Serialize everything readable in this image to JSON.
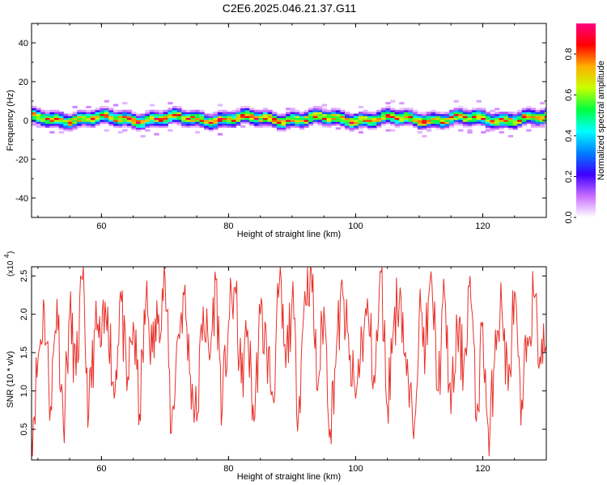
{
  "title": "C2E6.2025.046.21.37.G11",
  "colors": {
    "snr_line": "#e8312a",
    "colormap": [
      "#ffffff",
      "#c86bff",
      "#3b00ff",
      "#0080ff",
      "#00ffff",
      "#00ff40",
      "#c8ff00",
      "#ffb000",
      "#ff0000",
      "#ff0080"
    ]
  },
  "chart_data": [
    {
      "type": "heatmap",
      "xlabel": "Height of straight line (km)",
      "ylabel": "Frequency (Hz)",
      "xlim": [
        49,
        130
      ],
      "ylim": [
        -50,
        50
      ],
      "x_ticks": [
        60,
        80,
        100,
        120
      ],
      "y_ticks": [
        -40,
        -20,
        0,
        20,
        40
      ],
      "y_tick_labels": [
        "-40",
        "-20",
        "0",
        "20",
        "40"
      ],
      "center_frequency_hz": 1.0,
      "band_halfwidth_hz": 3,
      "colorbar": {
        "label": "Normalized spectral amplitude",
        "range": [
          0.0,
          0.95
        ],
        "ticks": [
          0.0,
          0.2,
          0.4,
          0.6,
          0.8
        ],
        "tick_labels": [
          "0.0",
          "0.2",
          "0.4",
          "0.6",
          "0.8"
        ]
      },
      "grid": false
    },
    {
      "type": "line",
      "xlabel": "Height of straight line (km)",
      "ylabel": "SNR (10 * v/v)",
      "y_exponent_label": "(x10",
      "y_exponent": "4",
      "xlim": [
        49,
        130
      ],
      "ylim": [
        0.1,
        2.62
      ],
      "x_ticks": [
        60,
        80,
        100,
        120
      ],
      "y_ticks": [
        0.5,
        1.0,
        1.5,
        2.0,
        2.5
      ],
      "y_tick_labels": [
        "0.5",
        "1.0",
        "1.5",
        "2.0",
        "2.5"
      ],
      "grid": false,
      "series": [
        {
          "x": [
            49,
            50,
            51,
            52,
            53,
            54,
            55,
            56,
            57,
            58,
            59,
            60,
            61,
            62,
            63,
            64,
            65,
            66,
            67,
            68,
            69,
            70,
            71,
            72,
            73,
            74,
            75,
            76,
            77,
            78,
            79,
            80,
            81,
            82,
            83,
            84,
            85,
            86,
            87,
            88,
            89,
            90,
            91,
            92,
            93,
            94,
            95,
            96,
            97,
            98,
            99,
            100,
            101,
            102,
            103,
            104,
            105,
            106,
            107,
            108,
            109,
            110,
            111,
            112,
            113,
            114,
            115,
            116,
            117,
            118,
            119,
            120,
            121,
            122,
            123,
            124,
            125,
            126,
            127,
            128,
            129,
            130
          ],
          "y": [
            0.4,
            1.4,
            2.1,
            0.8,
            2.2,
            0.55,
            2.0,
            1.2,
            2.45,
            0.7,
            1.8,
            1.6,
            2.1,
            0.9,
            2.3,
            1.0,
            1.9,
            0.7,
            2.2,
            1.5,
            2.0,
            2.5,
            0.45,
            1.7,
            2.25,
            1.2,
            0.6,
            2.1,
            1.4,
            2.45,
            0.75,
            1.9,
            2.35,
            1.1,
            1.8,
            0.6,
            2.0,
            1.55,
            0.9,
            2.4,
            1.3,
            2.2,
            0.7,
            2.3,
            2.6,
            1.0,
            2.1,
            0.5,
            1.6,
            2.25,
            1.4,
            0.9,
            1.7,
            2.0,
            1.1,
            2.55,
            0.8,
            1.9,
            2.35,
            1.2,
            0.5,
            2.0,
            1.6,
            2.4,
            1.0,
            2.25,
            0.7,
            1.8,
            1.3,
            2.5,
            0.6,
            1.9,
            0.15,
            1.8,
            2.1,
            1.0,
            2.3,
            0.55,
            1.7,
            2.25,
            1.45,
            1.6
          ]
        }
      ]
    }
  ]
}
